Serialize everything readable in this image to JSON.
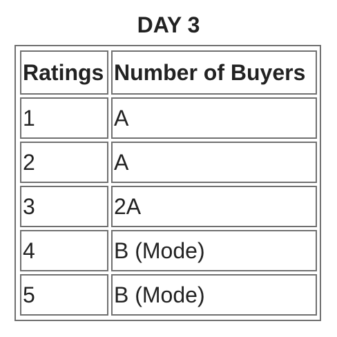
{
  "title": "DAY 3",
  "table": {
    "headers": [
      "Ratings",
      "Number of Buyers"
    ],
    "rows": [
      [
        "1",
        "A"
      ],
      [
        "2",
        "A"
      ],
      [
        "3",
        "2A"
      ],
      [
        "4",
        "B (Mode)"
      ],
      [
        "5",
        "B (Mode)"
      ]
    ]
  }
}
